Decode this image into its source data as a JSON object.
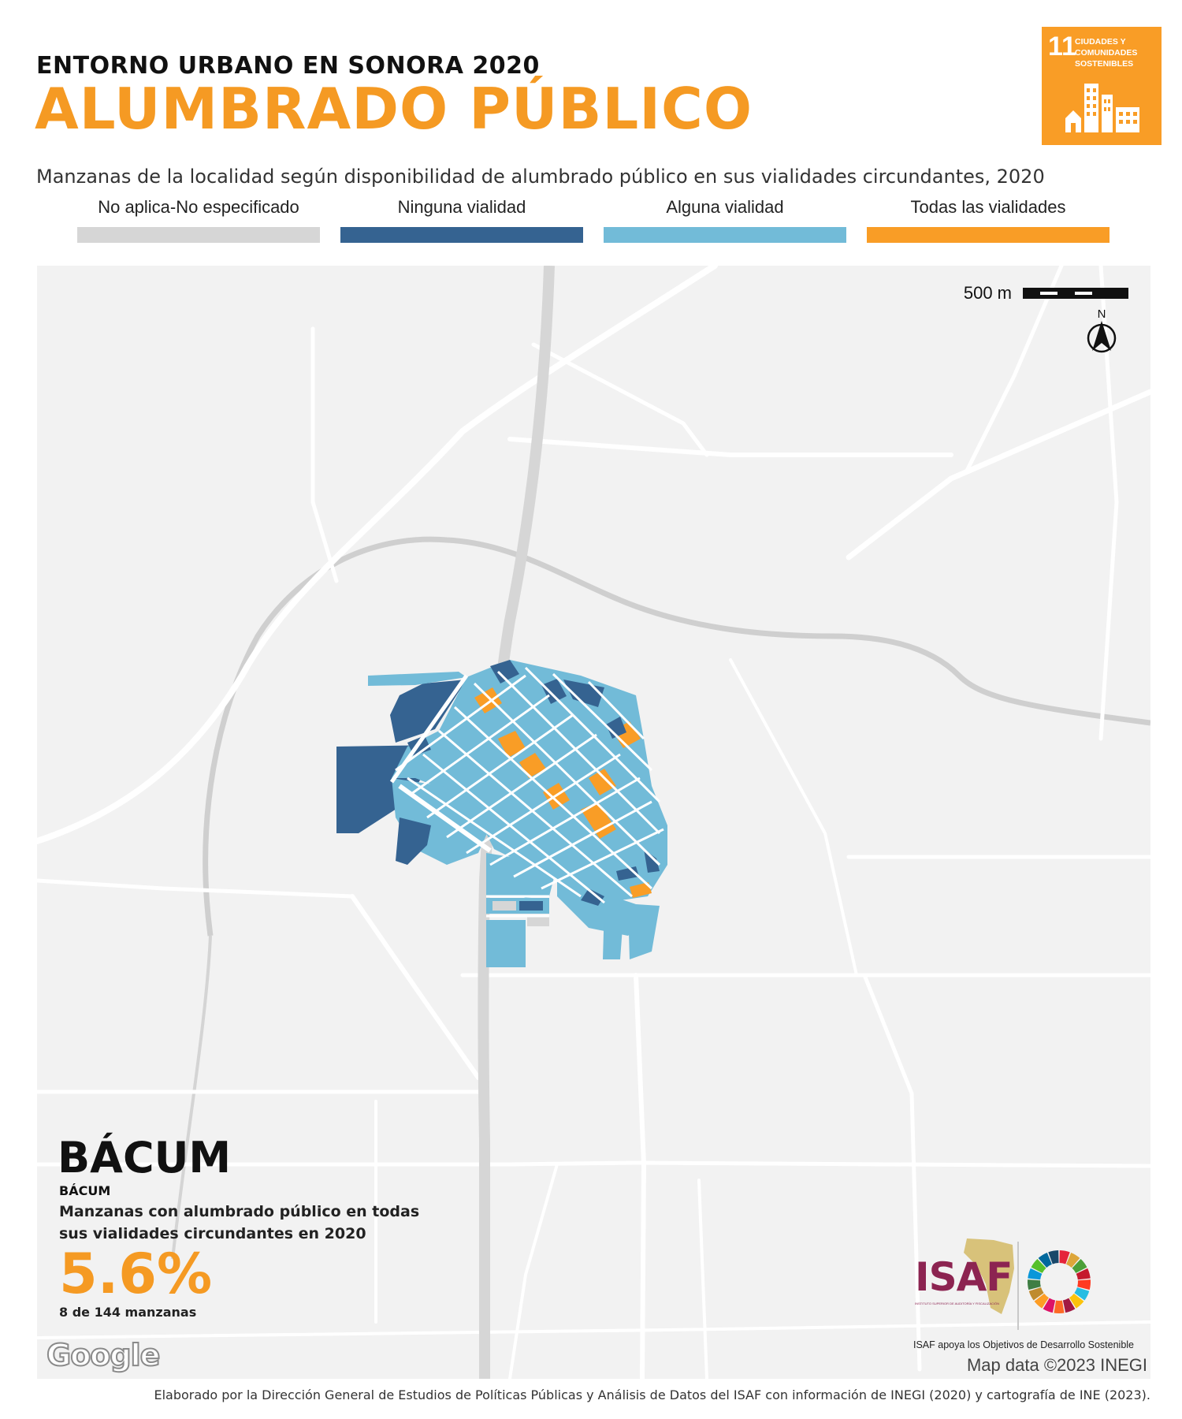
{
  "header": {
    "kicker": "ENTORNO URBANO EN SONORA 2020",
    "title": "ALUMBRADO PÚBLICO",
    "subtitle": "Manzanas de la localidad según disponibilidad de alumbrado público en sus vialidades circundantes, 2020"
  },
  "sdg_badge": {
    "number": "11",
    "text_line1": "CIUDADES Y",
    "text_line2": "COMUNIDADES",
    "text_line3": "SOSTENIBLES",
    "color": "#f99d26"
  },
  "legend": [
    {
      "label": "No aplica-No especificado",
      "color": "#d6d6d6"
    },
    {
      "label": "Ninguna vialidad",
      "color": "#356391"
    },
    {
      "label": "Alguna vialidad",
      "color": "#72bbd8"
    },
    {
      "label": "Todas las vialidades",
      "color": "#f99d26"
    }
  ],
  "map": {
    "scale_label": "500 m",
    "north_label": "N",
    "basemap_color": "#f2f2f2",
    "road_color": "#ffffff",
    "highway_color": "#d8d8d8",
    "google_label": "Google",
    "attribution": "Map data ©2023 INEGI"
  },
  "locality": {
    "name": "BÁCUM",
    "name_small": "BÁCUM",
    "metric_description": "Manzanas con alumbrado público en todas sus vialidades circundantes en 2020",
    "metric_value": "5.6%",
    "metric_count": "8 de 144 manzanas",
    "metric_color": "#f59a23"
  },
  "logos": {
    "isaf_word": "ISAF",
    "isaf_subtext": "INSTITUTO SUPERIOR DE AUDITORÍA Y FISCALIZACIÓN",
    "isaf_caption": "ISAF apoya los Objetivos de Desarrollo Sostenible",
    "sdg_wheel_colors": [
      "#e5243b",
      "#dda63a",
      "#4c9f38",
      "#c5192d",
      "#ff3a21",
      "#26bde2",
      "#fcc30b",
      "#a21942",
      "#fd6925",
      "#dd1367",
      "#fd9d24",
      "#bf8b2e",
      "#3f7e44",
      "#0a97d9",
      "#56c02b",
      "#00689d",
      "#19486a"
    ]
  },
  "footer": {
    "credit": "Elaborado por la Dirección General de Estudios de Políticas Públicas y Análisis de Datos del ISAF con información de INEGI (2020) y cartografía de INE (2023)."
  }
}
